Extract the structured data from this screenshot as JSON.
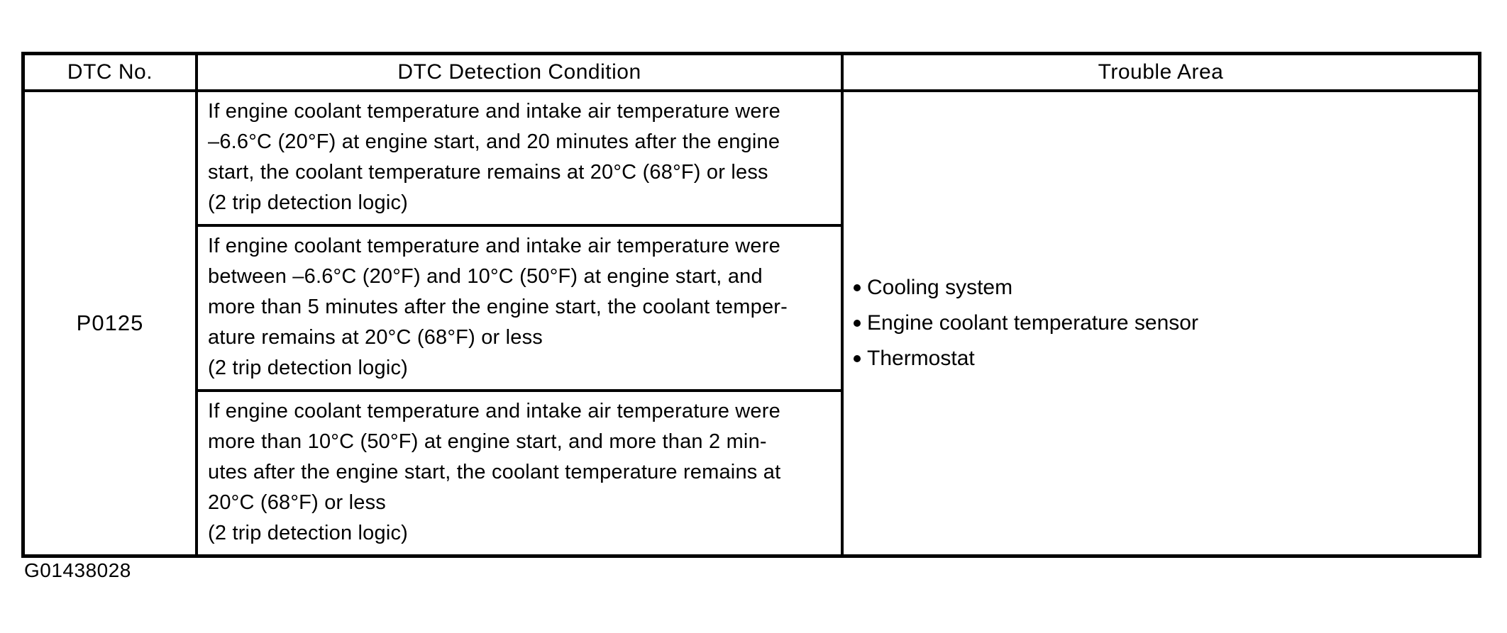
{
  "document": {
    "figure_code": "G01438028"
  },
  "table": {
    "columns": [
      "DTC No.",
      "DTC Detection Condition",
      "Trouble Area"
    ],
    "dtc_no": "P0125",
    "detection_conditions": [
      [
        "If engine coolant temperature and intake air temperature were",
        "–6.6°C (20°F) at engine start, and 20 minutes after the engine",
        "start, the coolant temperature remains at 20°C (68°F) or less",
        "(2 trip detection logic)"
      ],
      [
        "If engine coolant temperature and intake air temperature were",
        "between –6.6°C (20°F) and 10°C (50°F) at engine start, and",
        "more than 5 minutes after the engine start, the coolant temper-",
        "ature remains at 20°C (68°F) or less",
        "(2 trip detection logic)"
      ],
      [
        "If engine coolant temperature and intake air temperature were",
        "more than 10°C (50°F) at engine start, and more than 2 min-",
        "utes after the engine start, the coolant temperature remains at",
        "20°C (68°F) or less",
        "(2 trip detection logic)"
      ]
    ],
    "trouble_areas": [
      "Cooling system",
      "Engine coolant temperature sensor",
      "Thermostat"
    ]
  }
}
